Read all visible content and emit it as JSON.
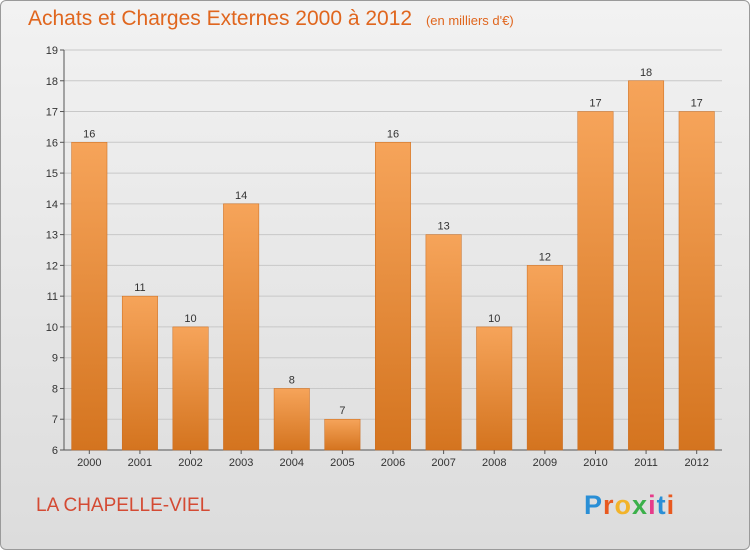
{
  "title": "Achats et Charges Externes 2000 à 2012",
  "subtitle": "(en milliers d'€)",
  "commune": "LA CHAPELLE-VIEL",
  "logo": {
    "letters": [
      "P",
      "r",
      "o",
      "x",
      "i",
      "t",
      "i"
    ],
    "colors": [
      "#2a8fd6",
      "#e8591f",
      "#f2b32a",
      "#3bb04a",
      "#e63b8a",
      "#2a8fd6",
      "#e8591f"
    ]
  },
  "colors": {
    "title": "#e0661e",
    "commune": "#d44a33",
    "bar_top": "#f6a45a",
    "bar_bottom": "#d4741f",
    "grid": "#c8c8c8"
  },
  "chart_data": {
    "type": "bar",
    "categories": [
      "2000",
      "2001",
      "2002",
      "2003",
      "2004",
      "2005",
      "2006",
      "2007",
      "2008",
      "2009",
      "2010",
      "2011",
      "2012"
    ],
    "values": [
      16,
      11,
      10,
      14,
      8,
      7,
      16,
      13,
      10,
      12,
      17,
      18,
      17
    ],
    "value_labels": [
      "16",
      "11",
      "10",
      "14",
      "8",
      "7",
      "16",
      "13",
      "10",
      "12",
      "17",
      "18",
      "17"
    ],
    "title": "Achats et Charges Externes 2000 à 2012",
    "ylim": [
      6,
      19
    ],
    "yticks": [
      "6",
      "7",
      "8",
      "9",
      "10",
      "11",
      "12",
      "13",
      "14",
      "15",
      "16",
      "17",
      "18",
      "19"
    ],
    "grid": true,
    "legend": false
  }
}
